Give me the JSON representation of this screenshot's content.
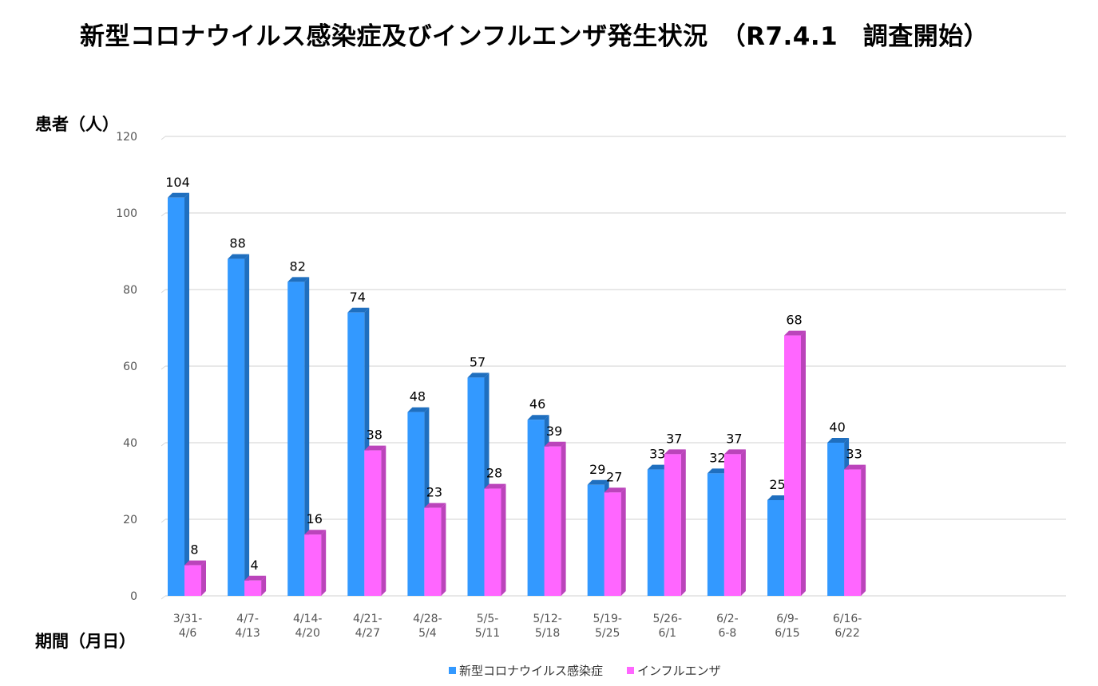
{
  "title": "新型コロナウイルス感染症及びインフルエンザ発生状況　（R7.4.1　調査開始）",
  "chart_data": {
    "type": "bar",
    "title": "新型コロナウイルス感染症及びインフルエンザ発生状況　（R7.4.1　調査開始）",
    "ylabel": "患者（人）",
    "xlabel": "期間（月日）",
    "ylim": [
      0,
      120
    ],
    "yticks": [
      0,
      20,
      40,
      60,
      80,
      100,
      120
    ],
    "grid": true,
    "legend_position": "bottom",
    "categories": [
      [
        "3/31-",
        "4/6"
      ],
      [
        "4/7-",
        "4/13"
      ],
      [
        "4/14-",
        "4/20"
      ],
      [
        "4/21-",
        "4/27"
      ],
      [
        "4/28-",
        "5/4"
      ],
      [
        "5/5-",
        "5/11"
      ],
      [
        "5/12-",
        "5/18"
      ],
      [
        "5/19-",
        "5/25"
      ],
      [
        "5/26-",
        "6/1"
      ],
      [
        "6/2-",
        "6-8"
      ],
      [
        "6/9-",
        "6/15"
      ],
      [
        "6/16-",
        "6/22"
      ]
    ],
    "series": [
      {
        "name": "新型コロナウイルス感染症",
        "color": "#3399ff",
        "side": "#1f6fbf",
        "values": [
          104,
          88,
          82,
          74,
          48,
          57,
          46,
          29,
          33,
          32,
          25,
          40
        ]
      },
      {
        "name": "インフルエンザ",
        "color": "#ff66ff",
        "side": "#bb44bb",
        "values": [
          8,
          4,
          16,
          38,
          23,
          28,
          39,
          27,
          37,
          37,
          68,
          33
        ]
      }
    ]
  }
}
